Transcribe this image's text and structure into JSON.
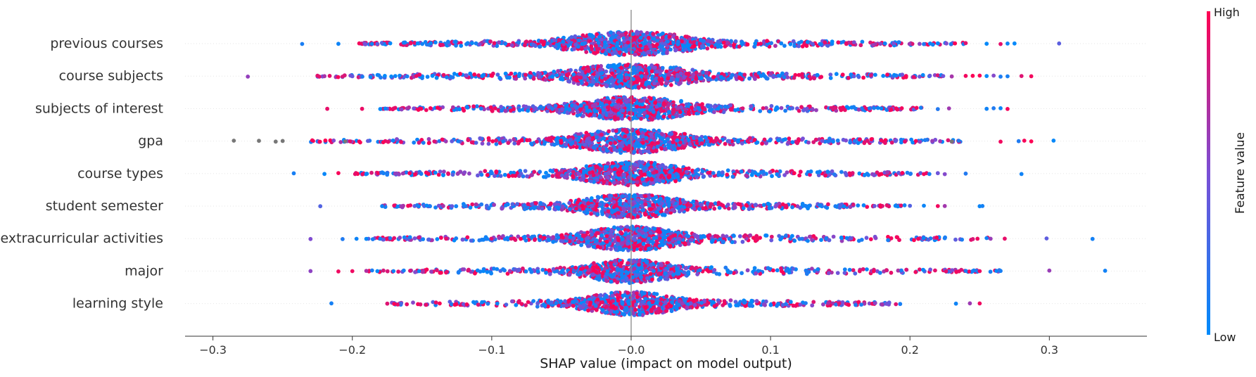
{
  "chart_data": {
    "type": "scatter",
    "subtype": "shap-beeswarm",
    "title": "",
    "xlabel": "SHAP value (impact on model output)",
    "xlim": [
      -0.32,
      0.37
    ],
    "xticks": [
      -0.3,
      -0.2,
      -0.1,
      0.0,
      0.1,
      0.2,
      0.3
    ],
    "xtick_labels": [
      "−0.3",
      "−0.2",
      "−0.1",
      "−0.0",
      "0.1",
      "0.2",
      "0.3"
    ],
    "zero_line": 0.0,
    "features": [
      {
        "name": "previous courses",
        "min": -0.236,
        "max": 0.307,
        "core_width": 0.055,
        "density": 1.0,
        "extremes": [
          -0.236,
          -0.21,
          -0.195,
          0.307,
          0.275,
          0.27,
          0.265,
          0.255,
          0.24,
          0.22,
          0.21
        ]
      },
      {
        "name": "course subjects",
        "min": -0.275,
        "max": 0.287,
        "core_width": 0.055,
        "density": 0.95,
        "extremes": [
          -0.275,
          -0.225,
          -0.22,
          -0.2,
          0.287,
          0.28,
          0.27,
          0.265,
          0.26,
          0.255,
          0.25,
          0.245,
          0.24,
          0.23
        ]
      },
      {
        "name": "subjects of interest",
        "min": -0.218,
        "max": 0.27,
        "core_width": 0.05,
        "density": 0.9,
        "extremes": [
          -0.218,
          -0.193,
          -0.18,
          0.27,
          0.265,
          0.26,
          0.255,
          0.228,
          0.22
        ]
      },
      {
        "name": "gpa",
        "min": -0.285,
        "max": 0.303,
        "core_width": 0.05,
        "density": 0.9,
        "extremes": [
          -0.285,
          -0.267,
          -0.255,
          -0.25,
          -0.205,
          0.303,
          0.287,
          0.282,
          0.278,
          0.265,
          0.235,
          0.23
        ]
      },
      {
        "name": "course types",
        "min": -0.242,
        "max": 0.28,
        "core_width": 0.045,
        "density": 0.85,
        "extremes": [
          -0.242,
          -0.22,
          -0.21,
          -0.198,
          -0.19,
          0.28,
          0.24,
          0.225,
          0.22,
          0.21
        ]
      },
      {
        "name": "student semester",
        "min": -0.223,
        "max": 0.252,
        "core_width": 0.045,
        "density": 0.85,
        "extremes": [
          -0.223,
          -0.17,
          -0.16,
          0.252,
          0.25,
          0.225,
          0.22,
          0.21,
          0.2
        ]
      },
      {
        "name": "extracurricular activities",
        "min": -0.23,
        "max": 0.331,
        "core_width": 0.045,
        "density": 0.85,
        "extremes": [
          -0.23,
          -0.207,
          -0.197,
          -0.19,
          -0.18,
          -0.17,
          0.331,
          0.298,
          0.268,
          0.255,
          0.225,
          0.21
        ]
      },
      {
        "name": "major",
        "min": -0.23,
        "max": 0.34,
        "core_width": 0.04,
        "density": 0.8,
        "extremes": [
          -0.23,
          -0.21,
          -0.2,
          -0.19,
          0.34,
          0.3,
          0.265,
          0.262,
          0.25,
          0.245,
          0.24
        ]
      },
      {
        "name": "learning style",
        "min": -0.215,
        "max": 0.25,
        "core_width": 0.04,
        "density": 0.75,
        "extremes": [
          -0.215,
          -0.17,
          -0.165,
          0.25,
          0.243,
          0.233,
          0.193,
          0.175
        ]
      }
    ],
    "colorbar": {
      "title": "Feature value",
      "high_label": "High",
      "low_label": "Low",
      "high_color": "#ff0052",
      "mid_color": "#7a4fd6",
      "low_color": "#008bfb"
    },
    "colors": {
      "axis": "#333333",
      "zero_line": "#888888",
      "row_guide": "#e6e6e6",
      "missing": "#777777"
    }
  }
}
